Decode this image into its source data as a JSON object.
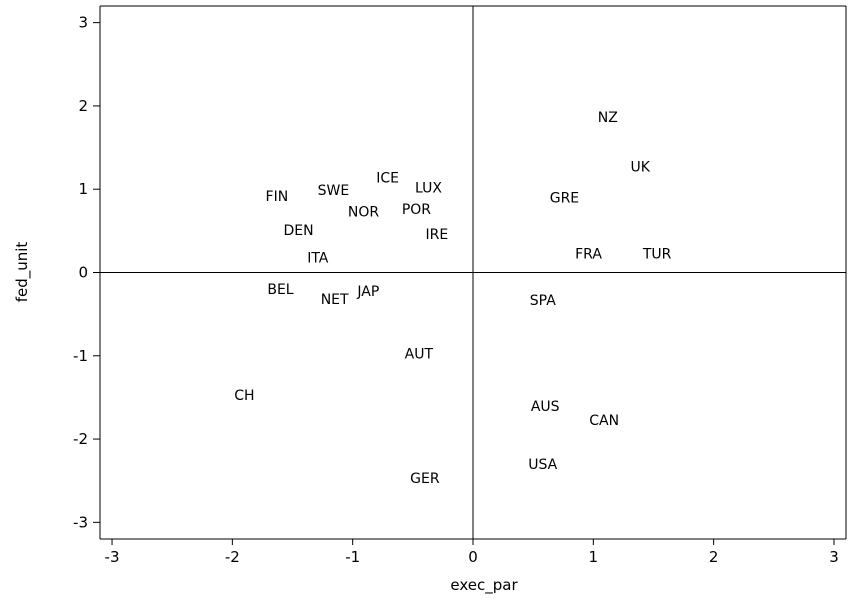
{
  "chart_data": {
    "type": "scatter",
    "xlabel": "exec_par",
    "ylabel": "fed_unit",
    "xlim": [
      -3.1,
      3.1
    ],
    "ylim": [
      -3.2,
      3.2
    ],
    "xticks": [
      -3,
      -2,
      -1,
      0,
      1,
      2,
      3
    ],
    "yticks": [
      -3,
      -2,
      -1,
      0,
      1,
      2,
      3
    ],
    "xtick_labels": [
      "-3",
      "-2",
      "-1",
      "0",
      "1",
      "2",
      "3"
    ],
    "ytick_labels": [
      "-3",
      "-2",
      "-1",
      "0",
      "1",
      "2",
      "3"
    ],
    "reference_lines": {
      "x": 0,
      "y": 0
    },
    "marker": "label-only",
    "points": [
      {
        "label": "NZ",
        "x": 1.12,
        "y": 1.87
      },
      {
        "label": "UK",
        "x": 1.39,
        "y": 1.27
      },
      {
        "label": "GRE",
        "x": 0.76,
        "y": 0.9
      },
      {
        "label": "FRA",
        "x": 0.96,
        "y": 0.23
      },
      {
        "label": "TUR",
        "x": 1.53,
        "y": 0.23
      },
      {
        "label": "SPA",
        "x": 0.58,
        "y": -0.33
      },
      {
        "label": "AUS",
        "x": 0.6,
        "y": -1.6
      },
      {
        "label": "CAN",
        "x": 1.09,
        "y": -1.77
      },
      {
        "label": "USA",
        "x": 0.58,
        "y": -2.3
      },
      {
        "label": "GER",
        "x": -0.4,
        "y": -2.47
      },
      {
        "label": "AUT",
        "x": -0.45,
        "y": -0.97
      },
      {
        "label": "CH",
        "x": -1.9,
        "y": -1.47
      },
      {
        "label": "BEL",
        "x": -1.6,
        "y": -0.2
      },
      {
        "label": "NET",
        "x": -1.15,
        "y": -0.32
      },
      {
        "label": "JAP",
        "x": -0.87,
        "y": -0.22
      },
      {
        "label": "ITA",
        "x": -1.29,
        "y": 0.18
      },
      {
        "label": "DEN",
        "x": -1.45,
        "y": 0.51
      },
      {
        "label": "FIN",
        "x": -1.63,
        "y": 0.92
      },
      {
        "label": "SWE",
        "x": -1.16,
        "y": 0.99
      },
      {
        "label": "NOR",
        "x": -0.91,
        "y": 0.73
      },
      {
        "label": "ICE",
        "x": -0.71,
        "y": 1.14
      },
      {
        "label": "LUX",
        "x": -0.37,
        "y": 1.02
      },
      {
        "label": "POR",
        "x": -0.47,
        "y": 0.76
      },
      {
        "label": "IRE",
        "x": -0.3,
        "y": 0.46
      }
    ]
  }
}
